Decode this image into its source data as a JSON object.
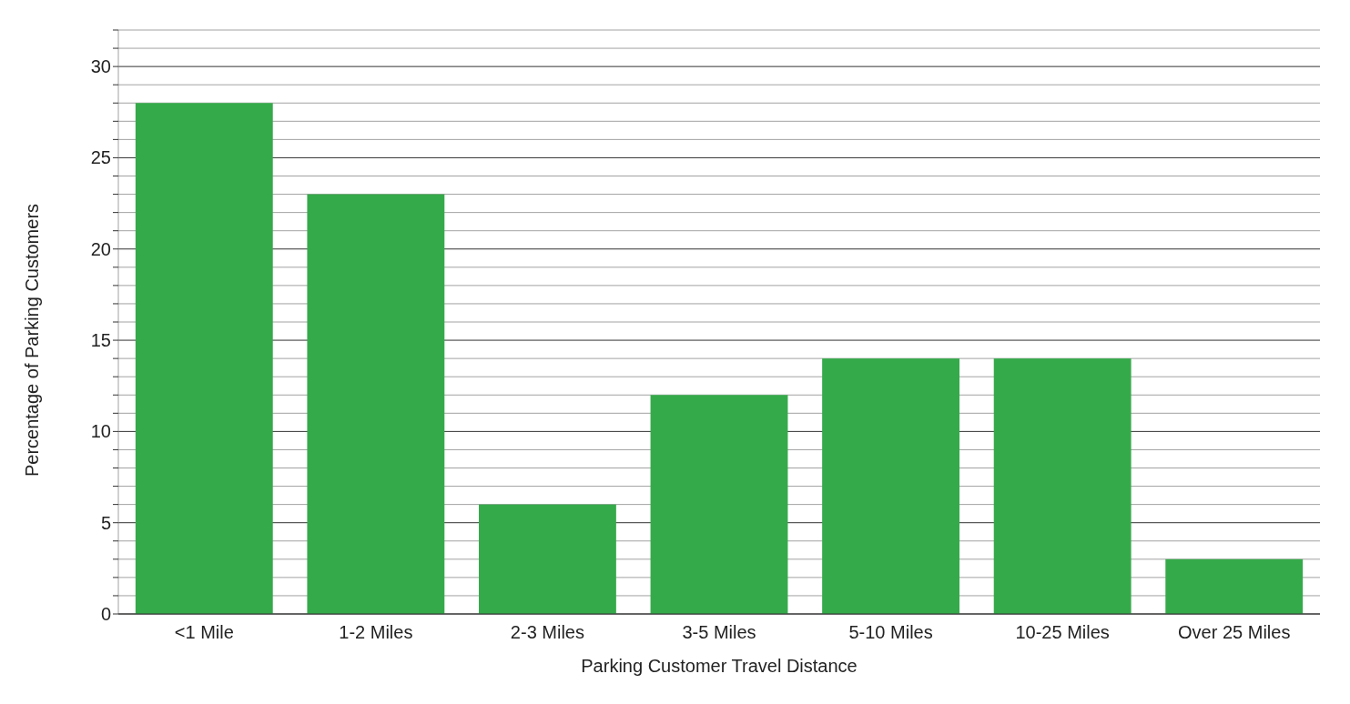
{
  "chart_data": {
    "type": "bar",
    "xlabel": "Parking Customer Travel Distance",
    "ylabel": "Percentage of Parking Customers",
    "categories": [
      "<1 Mile",
      "1-2 Miles",
      "2-3 Miles",
      "3-5 Miles",
      "5-10 Miles",
      "10-25 Miles",
      "Over 25 Miles"
    ],
    "values": [
      28,
      23,
      6,
      12,
      14,
      14,
      3
    ],
    "color": "#35aa4a",
    "ylim": [
      0,
      32
    ],
    "yticks": [
      0,
      {
        "value": 1,
        "label": null
      },
      {
        "value": 2,
        "label": null
      },
      {
        "value": 3,
        "label": null
      },
      {
        "value": 4,
        "label": null
      },
      5,
      {
        "value": 6,
        "label": null
      },
      {
        "value": 7,
        "label": null
      },
      {
        "value": 8,
        "label": null
      },
      {
        "value": 9,
        "label": null
      },
      10,
      {
        "value": 11,
        "label": null
      },
      {
        "value": 12,
        "label": null
      },
      {
        "value": 13,
        "label": null
      },
      {
        "value": 14,
        "label": null
      },
      15,
      {
        "value": 16,
        "label": null
      },
      {
        "value": 17,
        "label": null
      },
      {
        "value": 18,
        "label": null
      },
      {
        "value": 19,
        "label": null
      },
      20,
      {
        "value": 21,
        "label": null
      },
      {
        "value": 22,
        "label": null
      },
      {
        "value": 23,
        "label": null
      },
      {
        "value": 24,
        "label": null
      },
      25,
      {
        "value": 26,
        "label": null
      },
      {
        "value": 27,
        "label": null
      },
      {
        "value": 28,
        "label": null
      },
      {
        "value": 29,
        "label": null
      },
      30,
      {
        "value": 31,
        "label": null
      },
      {
        "value": 32,
        "label": null
      }
    ],
    "grid": true
  }
}
